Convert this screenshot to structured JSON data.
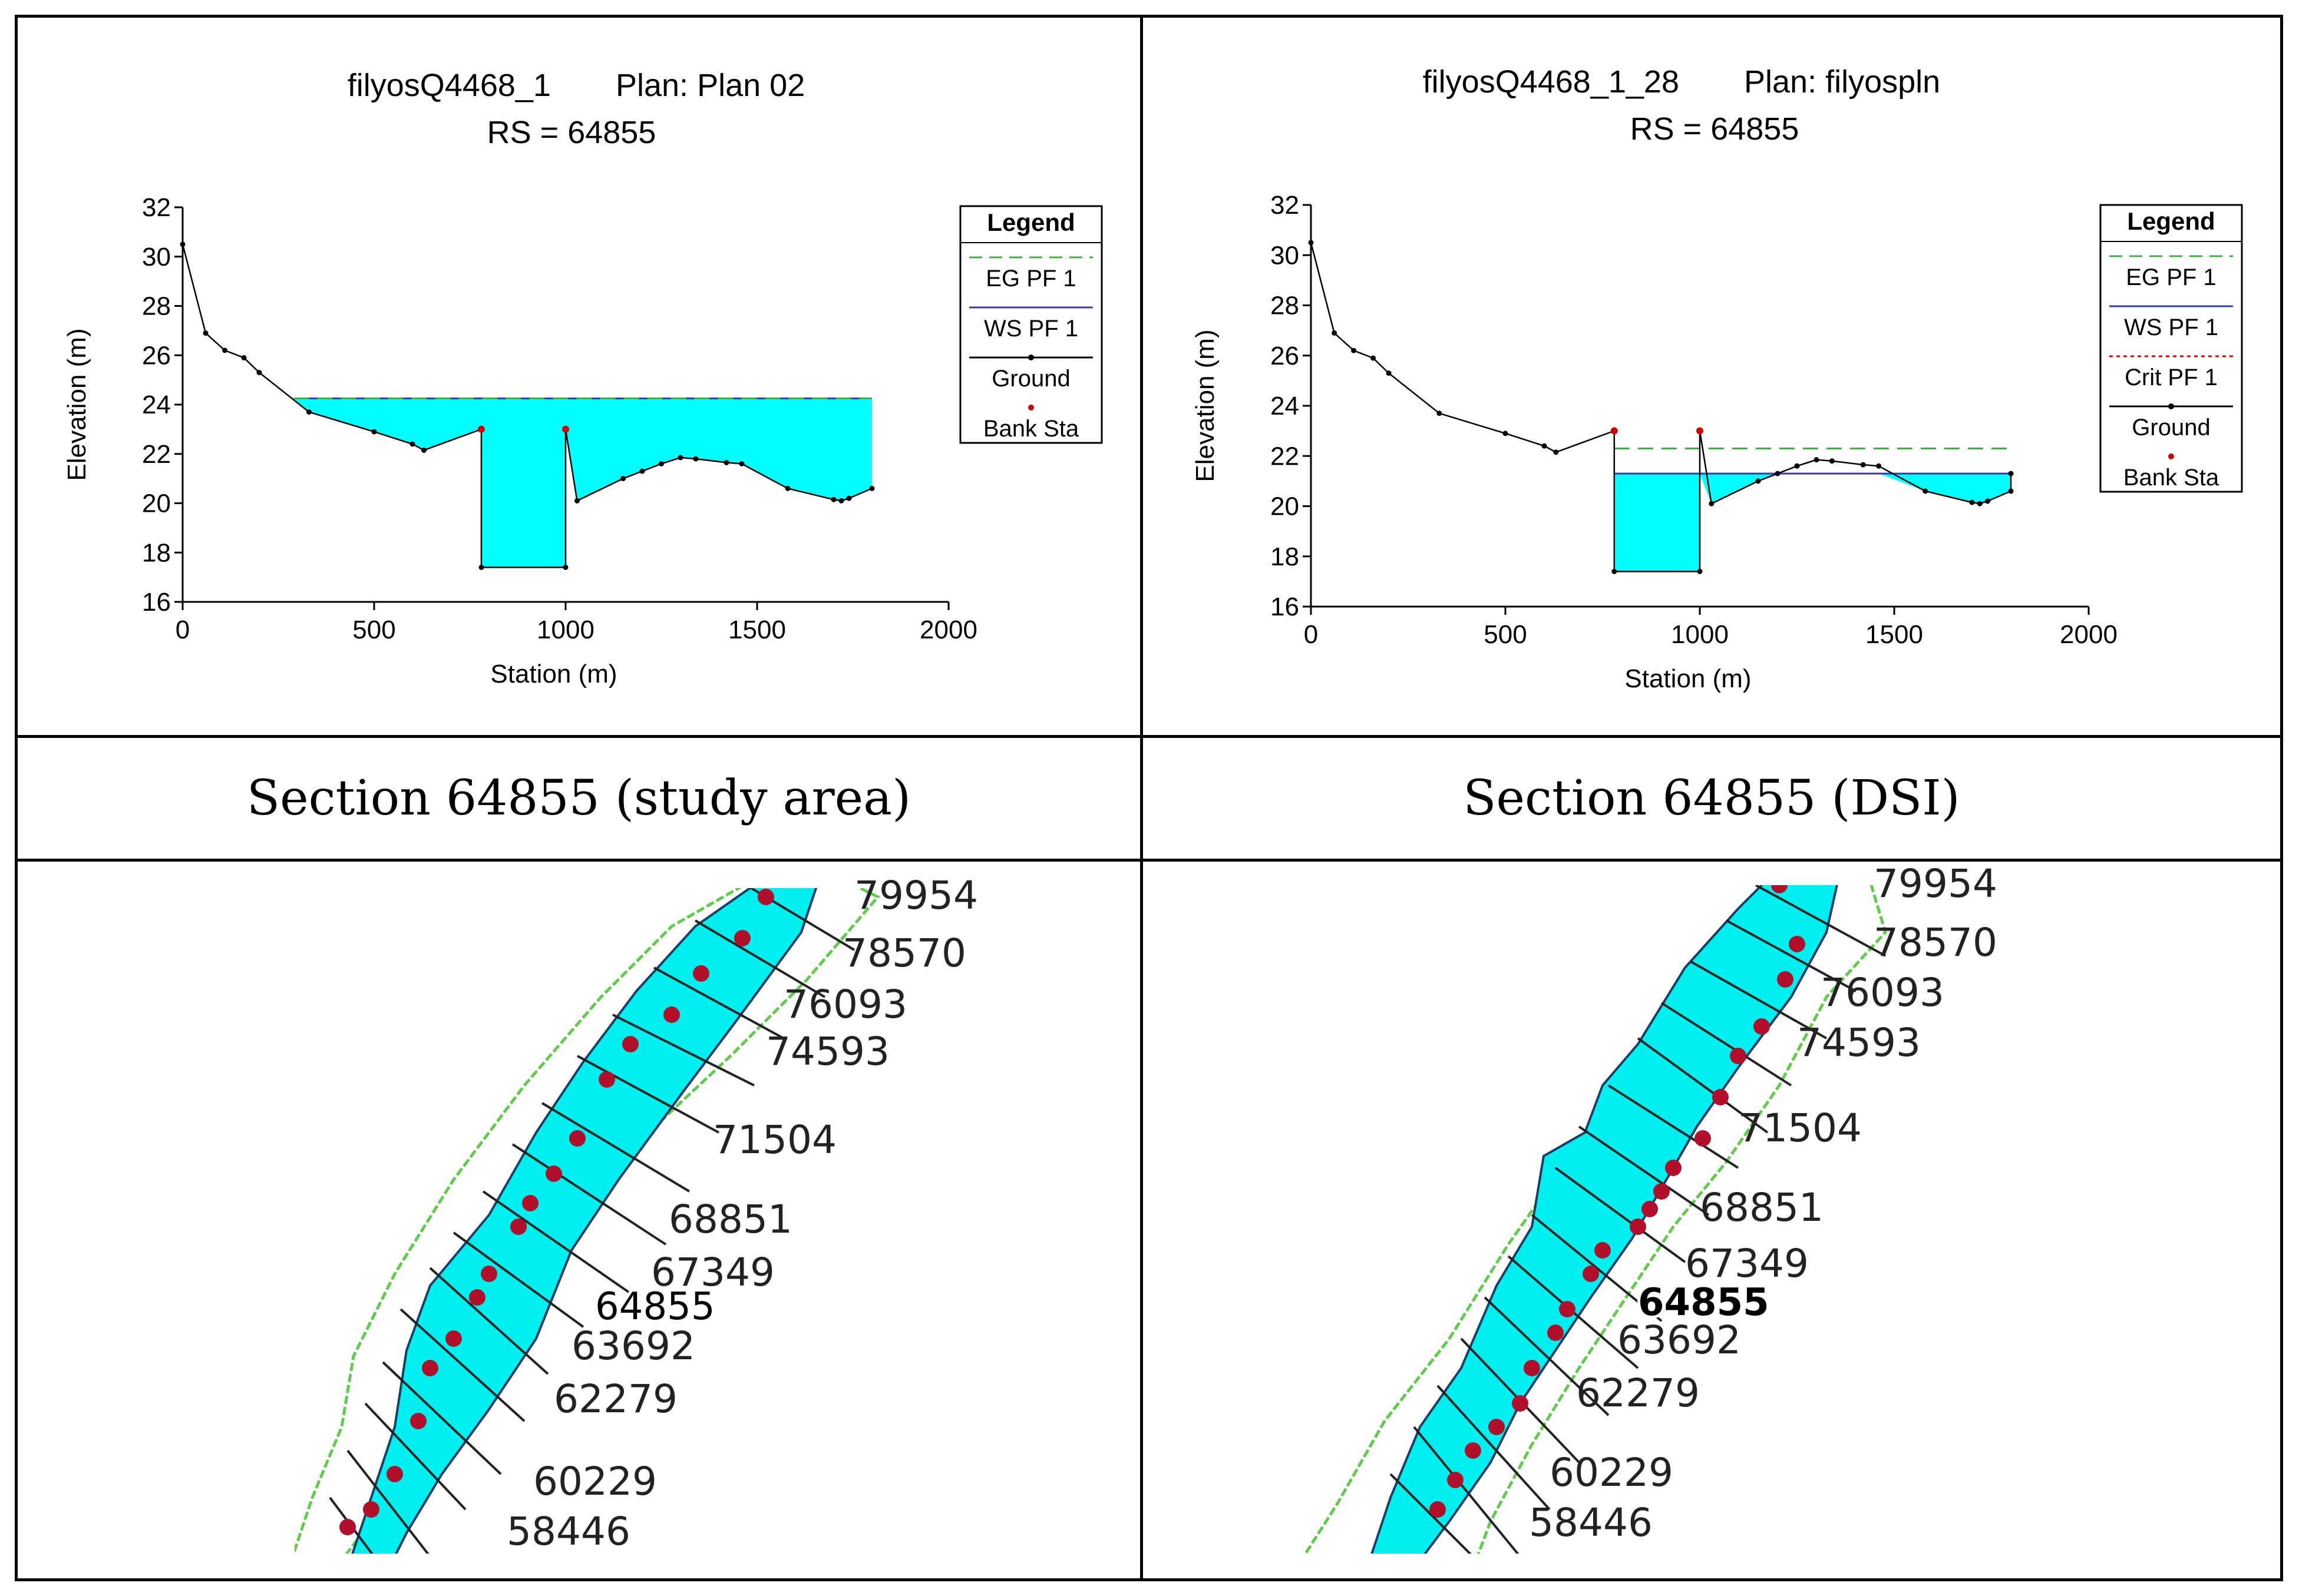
{
  "chart_data": [
    {
      "type": "line",
      "title": "filyosQ4468_1",
      "plan": "Plan: Plan 02",
      "subtitle": "RS = 64855",
      "xlabel": "Station (m)",
      "ylabel": "Elevation (m)",
      "xlim": [
        0,
        2000
      ],
      "ylim": [
        16,
        32
      ],
      "xticks": [
        "0",
        "500",
        "1000",
        "1500",
        "2000"
      ],
      "yticks": [
        "16",
        "18",
        "20",
        "22",
        "24",
        "26",
        "28",
        "30",
        "32"
      ],
      "legend": {
        "title": "Legend",
        "entries": [
          {
            "label": "EG PF 1",
            "style": "dash",
            "color": "#3cb043"
          },
          {
            "label": "WS PF 1",
            "style": "line",
            "color": "#3a3aa8"
          },
          {
            "label": "Ground",
            "style": "line-dot",
            "color": "#000000"
          },
          {
            "label": "Bank Sta",
            "style": "dot",
            "color": "#d40000"
          }
        ]
      },
      "ground": {
        "x": [
          0,
          60,
          110,
          160,
          200,
          330,
          500,
          600,
          630,
          780,
          780,
          1000,
          1000,
          1030,
          1150,
          1200,
          1250,
          1300,
          1340,
          1420,
          1460,
          1580,
          1700,
          1720,
          1740,
          1800
        ],
        "y": [
          30.5,
          26.9,
          26.2,
          25.9,
          25.3,
          23.7,
          22.9,
          22.4,
          22.15,
          23.0,
          17.4,
          17.4,
          23.0,
          20.1,
          21.0,
          21.3,
          21.6,
          21.85,
          21.8,
          21.65,
          21.6,
          20.6,
          20.15,
          20.1,
          20.2,
          20.6
        ]
      },
      "bank_sta": {
        "x": [
          780,
          1000
        ],
        "y": [
          23.0,
          23.0
        ]
      },
      "ws_elevation": 24.25,
      "eg_elevation": 24.25,
      "water_x_range": [
        290,
        1800
      ]
    },
    {
      "type": "line",
      "title": "filyosQ4468_1_28",
      "plan": "Plan: filyospln",
      "subtitle": "RS = 64855",
      "xlabel": "Station (m)",
      "ylabel": "Elevation (m)",
      "xlim": [
        0,
        2000
      ],
      "ylim": [
        16,
        32
      ],
      "xticks": [
        "0",
        "500",
        "1000",
        "1500",
        "2000"
      ],
      "yticks": [
        "16",
        "18",
        "20",
        "22",
        "24",
        "26",
        "28",
        "30",
        "32"
      ],
      "legend": {
        "title": "Legend",
        "entries": [
          {
            "label": "EG PF 1",
            "style": "dash",
            "color": "#3cb043"
          },
          {
            "label": "WS PF 1",
            "style": "line",
            "color": "#3a3aa8"
          },
          {
            "label": "Crit PF 1",
            "style": "dot-dash",
            "color": "#d40000"
          },
          {
            "label": "Ground",
            "style": "line-dot",
            "color": "#000000"
          },
          {
            "label": "Bank Sta",
            "style": "dot",
            "color": "#d40000"
          }
        ]
      },
      "ground": {
        "x": [
          0,
          60,
          110,
          160,
          200,
          330,
          500,
          600,
          630,
          780,
          780,
          1000,
          1000,
          1030,
          1150,
          1200,
          1250,
          1300,
          1340,
          1420,
          1460,
          1580,
          1700,
          1720,
          1740,
          1800,
          1800
        ],
        "y": [
          30.5,
          26.9,
          26.2,
          25.9,
          25.3,
          23.7,
          22.9,
          22.4,
          22.15,
          23.0,
          17.4,
          17.4,
          23.0,
          20.1,
          21.0,
          21.3,
          21.6,
          21.85,
          21.8,
          21.65,
          21.6,
          20.6,
          20.15,
          20.1,
          20.2,
          20.6,
          21.3
        ]
      },
      "bank_sta": {
        "x": [
          780,
          1000
        ],
        "y": [
          23.0,
          23.0
        ]
      },
      "ws_elevation": 21.3,
      "eg_elevation": 22.3,
      "water_x_range": [
        780,
        1800
      ],
      "eg_x_range": [
        780,
        1800
      ]
    }
  ],
  "captions": {
    "left": "Section 64855 (study area)",
    "right": "Section 64855 (DSI)"
  },
  "maps": {
    "left": {
      "labels": [
        "79954",
        "78570",
        "76093",
        "74593",
        "71504",
        "68851",
        "67349",
        "64855",
        "63692",
        "62279",
        "60229",
        "58446"
      ],
      "highlight": "64855"
    },
    "right": {
      "labels": [
        "79954",
        "78570",
        "76093",
        "74593",
        "71504",
        "68851",
        "67349",
        "64855",
        "63692",
        "62279",
        "60229",
        "58446"
      ],
      "highlight": "64855"
    }
  }
}
